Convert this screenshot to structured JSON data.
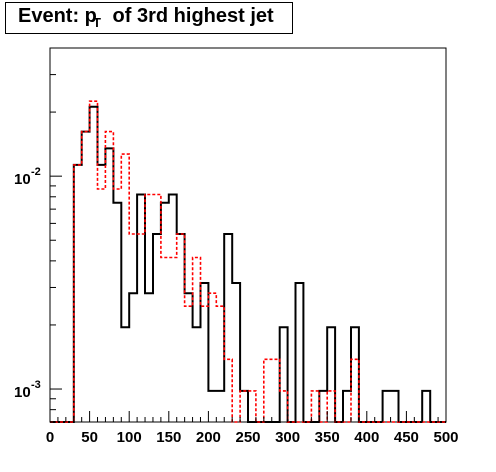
{
  "title": {
    "prefix": "Event: p",
    "subscript": "T",
    "suffix": " of 3rd highest jet"
  },
  "chart_data": {
    "type": "step-histogram",
    "x_range": [
      0,
      500
    ],
    "y_range": [
      0.0007,
      0.04
    ],
    "y_scale": "log",
    "x_ticks": [
      {
        "value": 0,
        "label": "0"
      },
      {
        "value": 50,
        "label": "50"
      },
      {
        "value": 100,
        "label": "100"
      },
      {
        "value": 150,
        "label": "150"
      },
      {
        "value": 200,
        "label": "200"
      },
      {
        "value": 250,
        "label": "250"
      },
      {
        "value": 300,
        "label": "300"
      },
      {
        "value": 350,
        "label": "350"
      },
      {
        "value": 400,
        "label": "400"
      },
      {
        "value": 450,
        "label": "450"
      },
      {
        "value": 500,
        "label": "500"
      }
    ],
    "y_ticks": [
      {
        "value": 0.01,
        "base": "10",
        "exp": "-2"
      },
      {
        "value": 0.001,
        "base": "10",
        "exp": "-3"
      }
    ],
    "bin_width": 10,
    "bin_start": 0,
    "series": [
      {
        "color": "#000000",
        "style": "solid",
        "values": [
          0,
          0,
          0,
          0.0113,
          0.0162,
          0.0212,
          0.0113,
          0.0135,
          0.0075,
          0.00195,
          0.00282,
          0.0082,
          0.00282,
          0.00535,
          0.0075,
          0.0082,
          0.00535,
          0.00282,
          0.00195,
          0.00315,
          0.00098,
          0.00098,
          0.00535,
          0.00315,
          0.00098,
          0,
          0,
          0,
          0,
          0.00195,
          0,
          0.00315,
          0,
          0,
          0.00098,
          0.00195,
          0,
          0.00098,
          0.00195,
          0,
          0,
          0,
          0.00098,
          0.00098,
          0,
          0,
          0,
          0.00098,
          0,
          0
        ]
      },
      {
        "color": "#ff0000",
        "style": "dashed",
        "values": [
          0,
          0,
          0,
          0.0113,
          0.0162,
          0.0225,
          0.0087,
          0.0162,
          0.0087,
          0.0127,
          0.00535,
          0.00535,
          0.0082,
          0.0082,
          0.00415,
          0.00415,
          0.00535,
          0.00245,
          0.00415,
          0.00245,
          0.00282,
          0.00245,
          0.00138,
          0,
          0.00098,
          0.00098,
          0,
          0.00138,
          0.00138,
          0.00098,
          0,
          0,
          0,
          0.00098,
          0,
          0.00098,
          0,
          0,
          0.00138,
          0,
          0,
          0,
          0,
          0,
          0,
          0,
          0,
          0,
          0,
          0
        ]
      }
    ]
  }
}
